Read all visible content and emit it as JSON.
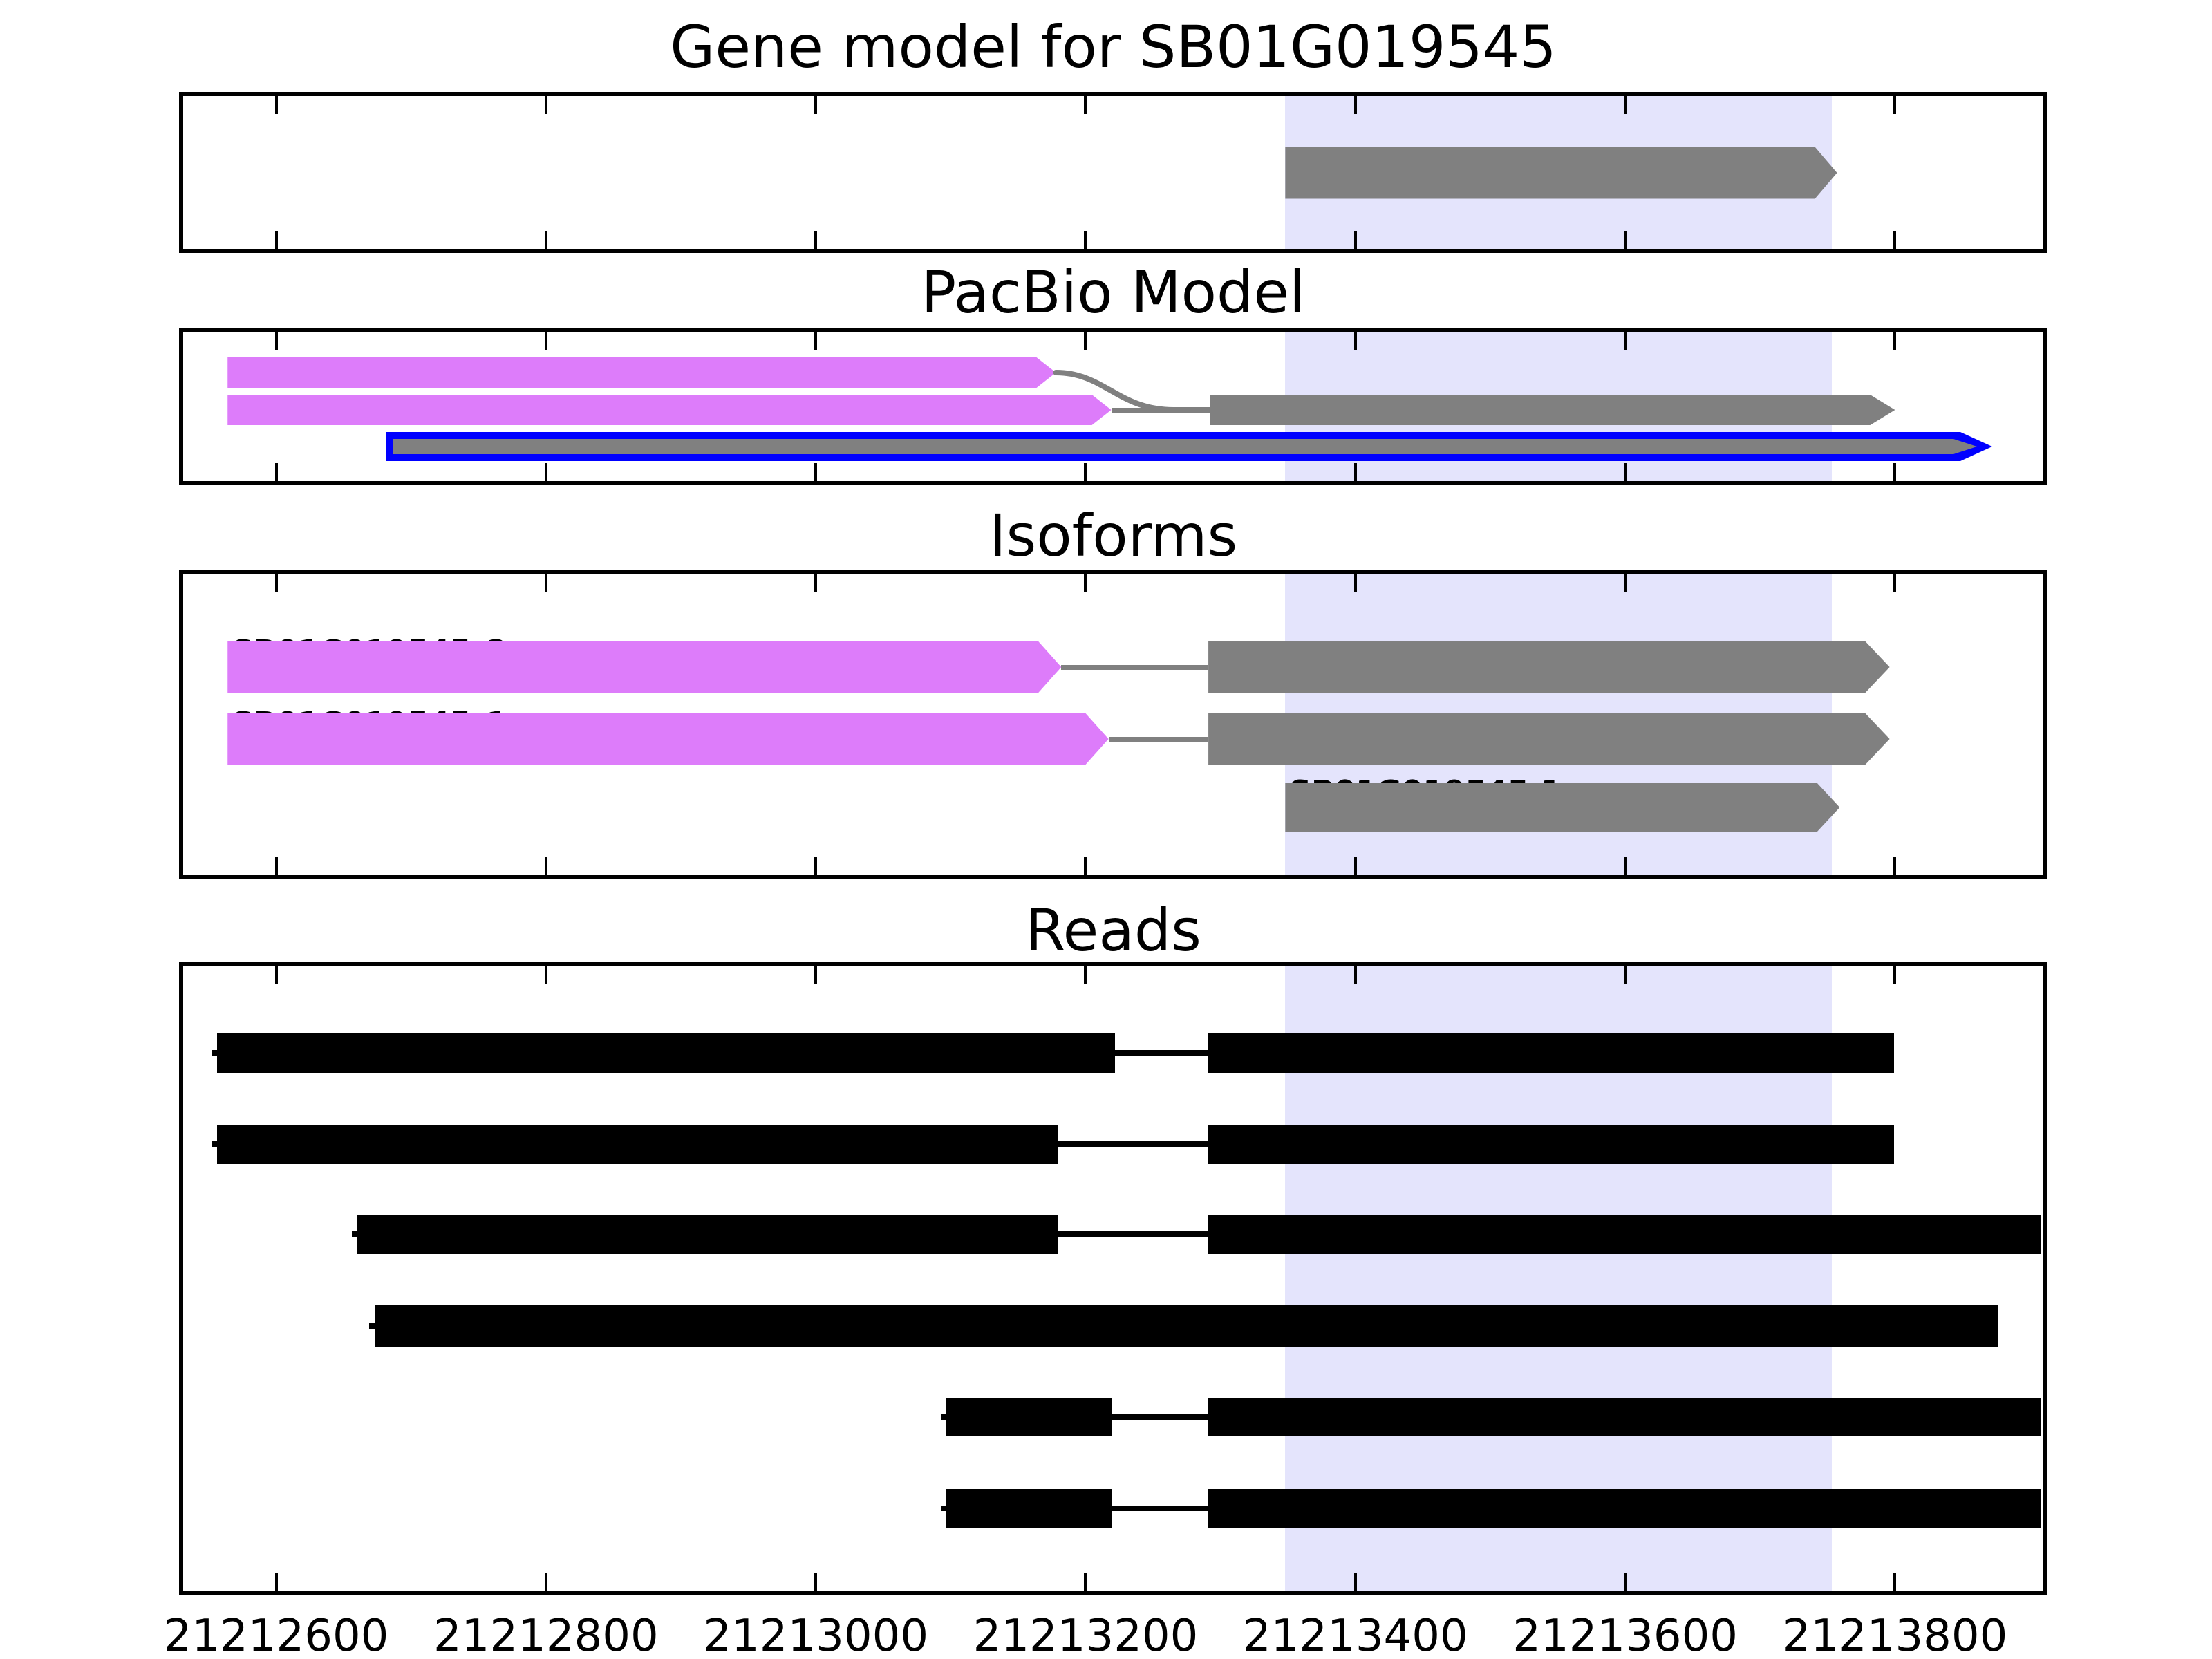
{
  "figure": {
    "background": "#FFFFFF"
  },
  "colors": {
    "magenta": "#DD7CFA",
    "gray": "#808080",
    "blue": "#0000FF",
    "black": "#000000",
    "highlight": "#E4E4FC",
    "connector": "#808080",
    "text": "#000000"
  },
  "chart_data": {
    "type": "genome_tracks",
    "xlim": [
      21212528,
      21213913
    ],
    "x_ticks": [
      21212600,
      21212800,
      21213000,
      21213200,
      21213400,
      21213600,
      21213800
    ],
    "highlight": {
      "start": 21213348,
      "end": 21213753
    },
    "panels": [
      {
        "id": "gene-model",
        "title": "Gene model for SB01G019545",
        "features": [
          {
            "type": "arrow",
            "row": 0,
            "start": 21213348,
            "end": 21213757,
            "color": "gray",
            "head": 32
          }
        ]
      },
      {
        "id": "pacbio",
        "title": "PacBio Model",
        "features": [
          {
            "type": "arrow",
            "row": 0,
            "start": 21212564,
            "end": 21213178,
            "color": "magenta",
            "head": 28
          },
          {
            "type": "arrow",
            "row": 1,
            "start": 21212564,
            "end": 21213219,
            "color": "magenta",
            "head": 28
          },
          {
            "type": "connector_curve",
            "from_row": 0,
            "from": 21213178,
            "to_row": 1,
            "to": 21213292
          },
          {
            "type": "connector_line",
            "row": 1,
            "start": 21213219,
            "end": 21213292
          },
          {
            "type": "arrow",
            "row": 1,
            "start": 21213292,
            "end": 21213800,
            "color": "gray",
            "head": 36
          },
          {
            "type": "arrow_outlined",
            "row": 2,
            "start": 21212681,
            "end": 21213872,
            "outline": "blue",
            "fill": "gray",
            "head": 46
          }
        ]
      },
      {
        "id": "isoforms",
        "title": "Isoforms",
        "features": [
          {
            "type": "label",
            "row": 0,
            "x": 21212564,
            "text": "SB01G019545_2"
          },
          {
            "type": "arrow",
            "row": 0,
            "start": 21212564,
            "end": 21213182,
            "color": "magenta",
            "head": 34
          },
          {
            "type": "connector_line",
            "row": 0,
            "start": 21213182,
            "end": 21213291
          },
          {
            "type": "arrow",
            "row": 0,
            "start": 21213291,
            "end": 21213796,
            "color": "gray",
            "head": 36
          },
          {
            "type": "label",
            "row": 1,
            "x": 21212564,
            "text": "SB01G019545_1"
          },
          {
            "type": "arrow",
            "row": 1,
            "start": 21212564,
            "end": 21213217,
            "color": "magenta",
            "head": 34
          },
          {
            "type": "connector_line",
            "row": 1,
            "start": 21213217,
            "end": 21213291
          },
          {
            "type": "arrow",
            "row": 1,
            "start": 21213291,
            "end": 21213796,
            "color": "gray",
            "head": 36
          },
          {
            "type": "label",
            "row": 2,
            "x": 21213348,
            "text": "SB01G019545.1"
          },
          {
            "type": "arrow",
            "row": 2,
            "start": 21213348,
            "end": 21213759,
            "color": "gray",
            "head": 33
          }
        ]
      },
      {
        "id": "reads",
        "title": "Reads",
        "features": [
          {
            "type": "read",
            "row": 0,
            "exons": [
              [
                21212556,
                21213222
              ],
              [
                21213291,
                21213799
              ]
            ]
          },
          {
            "type": "read",
            "row": 1,
            "exons": [
              [
                21212556,
                21213180
              ],
              [
                21213291,
                21213799
              ]
            ]
          },
          {
            "type": "read",
            "row": 2,
            "exons": [
              [
                21212660,
                21213180
              ],
              [
                21213291,
                21213908
              ]
            ]
          },
          {
            "type": "read",
            "row": 3,
            "exons": [
              [
                21212673,
                21213876
              ]
            ]
          },
          {
            "type": "read",
            "row": 4,
            "exons": [
              [
                21213097,
                21213219
              ],
              [
                21213291,
                21213908
              ]
            ]
          },
          {
            "type": "read",
            "row": 5,
            "exons": [
              [
                21213097,
                21213219
              ],
              [
                21213291,
                21213908
              ]
            ]
          }
        ]
      }
    ]
  }
}
